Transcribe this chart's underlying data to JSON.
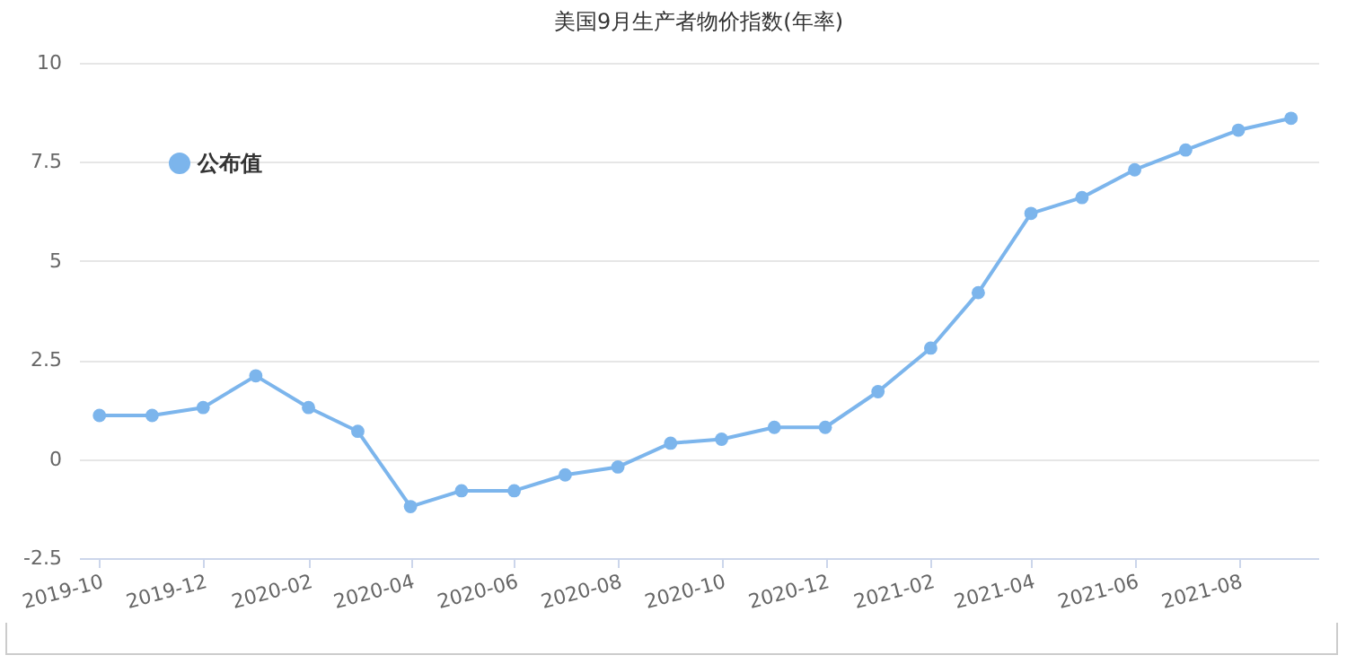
{
  "chart_data": {
    "type": "line",
    "title": "美国9月生产者物价指数(年率)",
    "x": [
      "2019-10",
      "2019-11",
      "2019-12",
      "2020-01",
      "2020-02",
      "2020-03",
      "2020-04",
      "2020-05",
      "2020-06",
      "2020-07",
      "2020-08",
      "2020-09",
      "2020-10",
      "2020-11",
      "2020-12",
      "2021-01",
      "2021-02",
      "2021-03",
      "2021-04",
      "2021-05",
      "2021-06",
      "2021-07",
      "2021-08",
      "2021-09"
    ],
    "series": [
      {
        "name": "公布值",
        "color": "#7cb5ec",
        "values": [
          1.1,
          1.1,
          1.3,
          2.1,
          1.3,
          0.7,
          -1.2,
          -0.8,
          -0.8,
          -0.4,
          -0.2,
          0.4,
          0.5,
          0.8,
          0.8,
          1.7,
          2.8,
          4.2,
          6.2,
          6.6,
          7.3,
          7.8,
          8.3,
          8.6
        ]
      }
    ],
    "xlim": [
      "2019-09-19",
      "2021-09-17"
    ],
    "xticks": [
      {
        "value": "2019-10",
        "label": "2019-10"
      },
      {
        "value": "2019-12",
        "label": "2019-12"
      },
      {
        "value": "2020-02",
        "label": "2020-02"
      },
      {
        "value": "2020-04",
        "label": "2020-04"
      },
      {
        "value": "2020-06",
        "label": "2020-06"
      },
      {
        "value": "2020-08",
        "label": "2020-08"
      },
      {
        "value": "2020-10",
        "label": "2020-10"
      },
      {
        "value": "2020-12",
        "label": "2020-12"
      },
      {
        "value": "2021-02",
        "label": "2021-02"
      },
      {
        "value": "2021-04",
        "label": "2021-04"
      },
      {
        "value": "2021-06",
        "label": "2021-06"
      },
      {
        "value": "2021-08",
        "label": "2021-08"
      }
    ],
    "ylim": [
      -2.5,
      10
    ],
    "yticks": [
      -2.5,
      0,
      2.5,
      5,
      7.5,
      10
    ],
    "grid": "y",
    "legend": "top left",
    "marker": "circle",
    "line_style": "solid"
  }
}
